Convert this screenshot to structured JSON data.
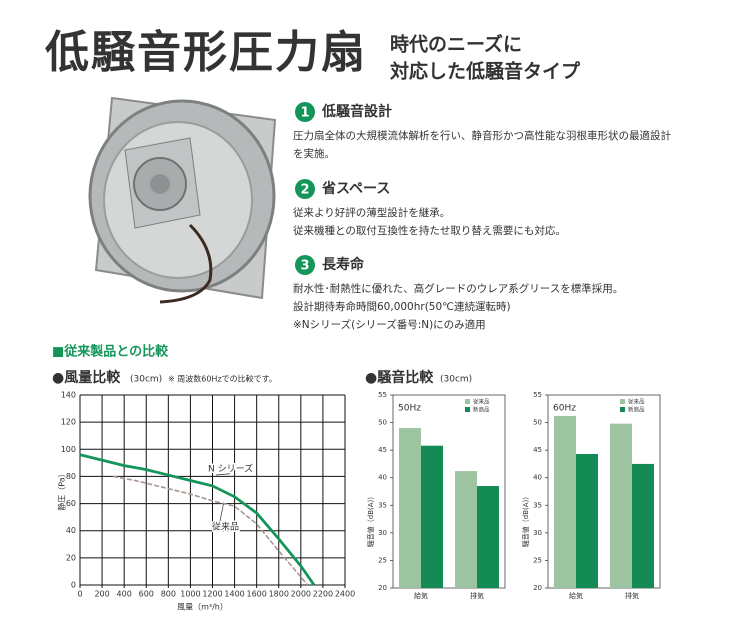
{
  "header": {
    "title": "低騒音形圧力扇",
    "subtitle": [
      "時代のニーズに",
      "対応した低騒音タイプ"
    ]
  },
  "features": [
    {
      "number": "1",
      "title": "低騒音設計",
      "lines": [
        "圧力扇全体の大規模流体解析を行い、静音形かつ高性能な羽根車形状の最適設計",
        "を実施。"
      ]
    },
    {
      "number": "2",
      "title": "省スペース",
      "lines": [
        "従来より好評の薄型設計を継承。",
        "従来機種との取付互換性を持たせ取り替え需要にも対応。"
      ]
    },
    {
      "number": "3",
      "title": "長寿命",
      "lines": [
        "耐水性･耐熱性に優れた、高グレードのウレア系グリースを標準採用。",
        "設計期待寿命時間60,000hr(50℃連続運転時)",
        "※Nシリーズ(シリーズ番号:N)にのみ適用"
      ]
    }
  ],
  "section_title": "■従来製品との比較",
  "chart_data": [
    {
      "type": "line",
      "title": "●風量比較",
      "size_note": "(30cm)",
      "note": "※ 周波数60Hzでの比較です。",
      "x_label": "風量（m³/h）",
      "y_label": "静圧（Pa）",
      "xlim": [
        0,
        2400
      ],
      "ylim": [
        0,
        140
      ],
      "xticks": [
        0,
        200,
        400,
        600,
        800,
        1000,
        1200,
        1400,
        1600,
        1800,
        2000,
        2200,
        2400
      ],
      "yticks": [
        0,
        20,
        40,
        60,
        80,
        100,
        120,
        140
      ],
      "grid": true,
      "series": [
        {
          "name": "N シリーズ",
          "color": "#14955a",
          "dashed": false,
          "x": [
            0,
            200,
            400,
            600,
            800,
            1000,
            1200,
            1400,
            1600,
            1800,
            2000,
            2120
          ],
          "values": [
            96,
            92,
            88,
            85,
            81,
            77,
            73,
            65,
            53,
            34,
            14,
            0
          ]
        },
        {
          "name": "従来品",
          "color": "#a8958f",
          "dashed": true,
          "x": [
            300,
            500,
            800,
            1000,
            1200,
            1400,
            1600,
            1800,
            2000,
            2060
          ],
          "values": [
            80,
            77,
            71,
            67,
            62,
            58,
            45,
            25,
            6,
            0
          ]
        }
      ]
    },
    {
      "type": "bar",
      "title": "●騒音比較",
      "size_note": "(30cm)",
      "panel_label": "50Hz",
      "y_label": "騒音値（dB(A)）",
      "categories": [
        "給気",
        "排気"
      ],
      "ylim": [
        20,
        55
      ],
      "yticks": [
        20,
        25,
        30,
        35,
        40,
        45,
        50,
        55
      ],
      "series": [
        {
          "name": "従来品",
          "color": "#9cc4a0",
          "values": [
            49,
            41.2
          ]
        },
        {
          "name": "新商品",
          "color": "#148a55",
          "values": [
            45.8,
            38.5
          ]
        }
      ]
    },
    {
      "type": "bar",
      "panel_label": "60Hz",
      "y_label": "騒音値（dB(A)）",
      "categories": [
        "給気",
        "排気"
      ],
      "ylim": [
        20,
        55
      ],
      "yticks": [
        20,
        25,
        30,
        35,
        40,
        45,
        50,
        55
      ],
      "series": [
        {
          "name": "従来品",
          "color": "#9cc4a0",
          "values": [
            51.2,
            49.8
          ]
        },
        {
          "name": "新商品",
          "color": "#148a55",
          "values": [
            44.3,
            42.5
          ]
        }
      ]
    }
  ]
}
